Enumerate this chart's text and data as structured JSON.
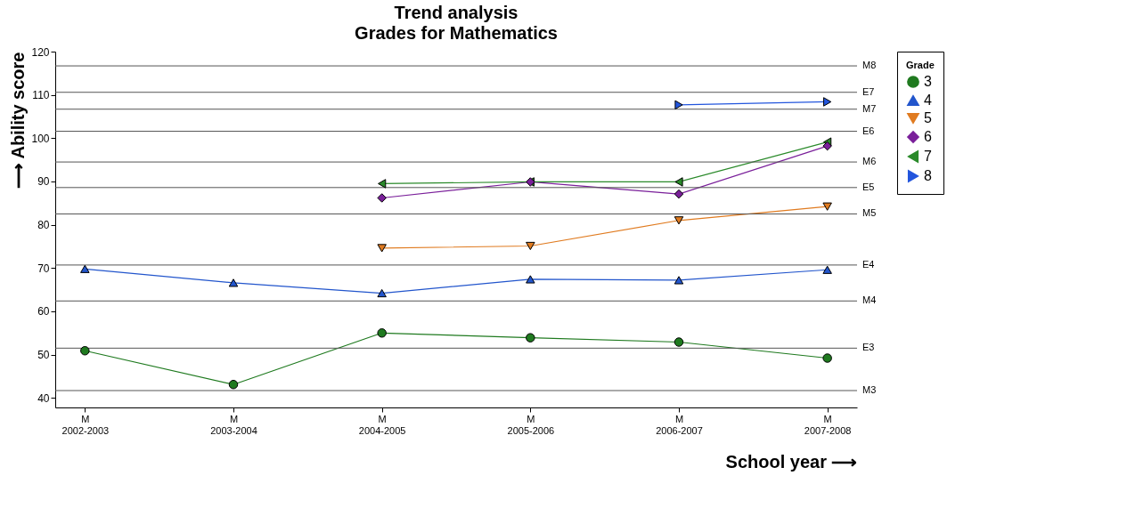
{
  "chart_data": {
    "type": "line",
    "title": "Trend analysis",
    "subtitle": "Grades for Mathematics",
    "xlabel": "School year ⟶",
    "ylabel": "⟶ Ability score",
    "legend_title": "Grade",
    "categories": [
      "M\n2002-2003",
      "M\n2003-2004",
      "M\n2004-2005",
      "M\n2005-2006",
      "M\n2006-2007",
      "M\n2007-2008"
    ],
    "ylim": [
      37.8,
      120
    ],
    "yticks": [
      40,
      50,
      60,
      70,
      80,
      90,
      100,
      110,
      120
    ],
    "ref_lines": [
      {
        "axis": "y",
        "value": 41.7,
        "label": "M3",
        "color": "#555555"
      },
      {
        "axis": "y",
        "value": 51.5,
        "label": "E3",
        "color": "#555555"
      },
      {
        "axis": "y",
        "value": 62.4,
        "label": "M4",
        "color": "#555555"
      },
      {
        "axis": "y",
        "value": 70.7,
        "label": "E4",
        "color": "#555555"
      },
      {
        "axis": "y",
        "value": 82.5,
        "label": "M5",
        "color": "#555555"
      },
      {
        "axis": "y",
        "value": 88.6,
        "label": "E5",
        "color": "#555555"
      },
      {
        "axis": "y",
        "value": 94.5,
        "label": "M6",
        "color": "#555555"
      },
      {
        "axis": "y",
        "value": 101.6,
        "label": "E6",
        "color": "#555555"
      },
      {
        "axis": "y",
        "value": 106.7,
        "label": "M7",
        "color": "#555555"
      },
      {
        "axis": "y",
        "value": 110.6,
        "label": "E7",
        "color": "#555555"
      },
      {
        "axis": "y",
        "value": 116.7,
        "label": "M8",
        "color": "#555555"
      }
    ],
    "legend": "top right",
    "line_style": "solid",
    "series": [
      {
        "name": "3",
        "color": "#1f7a1f",
        "marker": "circle",
        "values": [
          50.9,
          43.1,
          55.0,
          53.9,
          52.9,
          49.2
        ]
      },
      {
        "name": "4",
        "color": "#2255cc",
        "marker": "triangle-up",
        "values": [
          69.8,
          66.6,
          64.2,
          67.4,
          67.2,
          69.6
        ]
      },
      {
        "name": "5",
        "color": "#e07b20",
        "marker": "triangle-down",
        "values": [
          null,
          null,
          74.6,
          75.1,
          81.0,
          84.2
        ]
      },
      {
        "name": "6",
        "color": "#7a1f9a",
        "marker": "diamond",
        "values": [
          null,
          null,
          86.2,
          89.9,
          87.1,
          98.2
        ]
      },
      {
        "name": "7",
        "color": "#2a8a2a",
        "marker": "triangle-left",
        "values": [
          null,
          null,
          89.5,
          89.9,
          89.9,
          99.1
        ]
      },
      {
        "name": "8",
        "color": "#2255dd",
        "marker": "triangle-right",
        "values": [
          null,
          null,
          null,
          null,
          107.7,
          108.4
        ]
      }
    ]
  }
}
